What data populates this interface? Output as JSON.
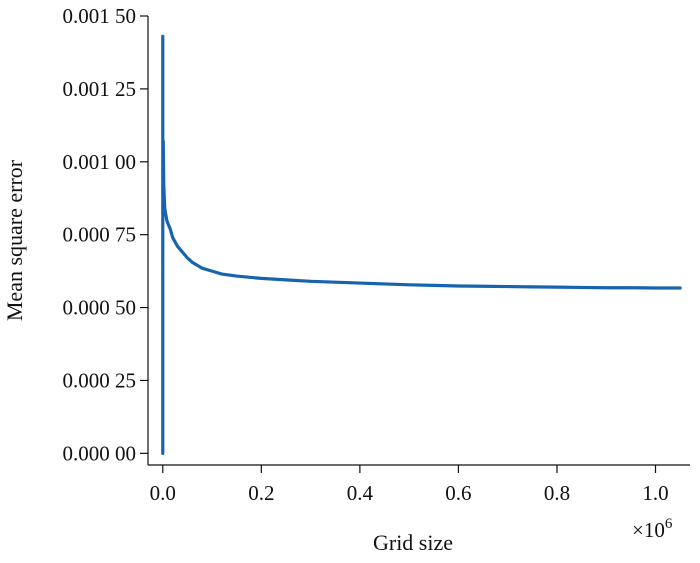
{
  "chart_data": {
    "type": "line",
    "title": "",
    "xlabel": "Grid size",
    "ylabel": "Mean square error",
    "x_multiplier_label": "×10",
    "x_multiplier_exponent": "6",
    "xlim": [
      -0.03,
      1.07
    ],
    "ylim": [
      -4e-05,
      0.0015
    ],
    "x_ticks": [
      0.0,
      0.2,
      0.4,
      0.6,
      0.8,
      1.0
    ],
    "x_tick_labels": [
      "0.0",
      "0.2",
      "0.4",
      "0.6",
      "0.8",
      "1.0"
    ],
    "y_ticks": [
      0.0,
      0.00025,
      0.0005,
      0.00075,
      0.001,
      0.00125,
      0.0015
    ],
    "y_tick_labels": [
      "0.000 00",
      "0.000 25",
      "0.000 50",
      "0.000 75",
      "0.001 00",
      "0.001 25",
      "0.001 50"
    ],
    "grid": false,
    "line_color": "#1763ad",
    "series": [
      {
        "x": [
          0.0,
          0.0,
          0.0,
          0.001,
          0.002,
          0.003,
          0.004,
          0.006,
          0.008,
          0.01,
          0.015,
          0.02,
          0.03,
          0.04,
          0.05,
          0.06,
          0.08,
          0.1,
          0.12,
          0.15,
          0.2,
          0.25,
          0.3,
          0.35,
          0.4,
          0.45,
          0.5,
          0.55,
          0.6,
          0.65,
          0.7,
          0.75,
          0.8,
          0.85,
          0.9,
          0.95,
          1.0,
          1.05
        ],
        "y": [
          0.0,
          0.00143,
          0.00098,
          0.00107,
          0.00092,
          0.00088,
          0.00084,
          0.00082,
          0.0008,
          0.00079,
          0.00077,
          0.00074,
          0.00071,
          0.00069,
          0.00067,
          0.000655,
          0.000635,
          0.000625,
          0.000615,
          0.000608,
          0.0006,
          0.000595,
          0.00059,
          0.000587,
          0.000584,
          0.000581,
          0.000578,
          0.000576,
          0.000574,
          0.000573,
          0.000572,
          0.000571,
          0.00057,
          0.000569,
          0.000568,
          0.000568,
          0.000567,
          0.000567
        ]
      }
    ]
  }
}
